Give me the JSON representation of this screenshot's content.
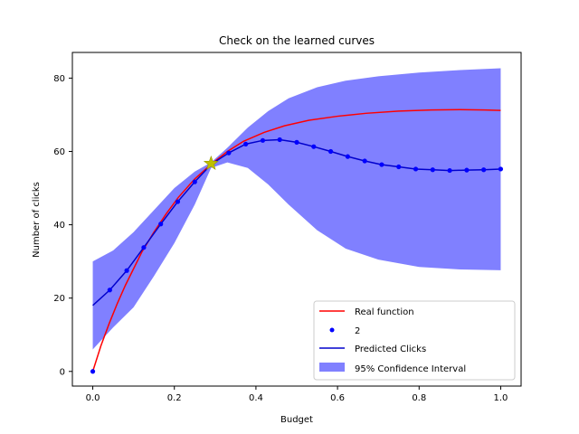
{
  "chart_data": {
    "type": "line",
    "title": "Check on the learned curves",
    "xlabel": "Budget",
    "ylabel": "Number of clicks",
    "xlim": [
      -0.05,
      1.05
    ],
    "ylim": [
      -4,
      87
    ],
    "xticks": [
      0.0,
      0.2,
      0.4,
      0.6,
      0.8,
      1.0
    ],
    "xtick_labels": [
      "0.0",
      "0.2",
      "0.4",
      "0.6",
      "0.8",
      "1.0"
    ],
    "yticks": [
      0,
      20,
      40,
      60,
      80
    ],
    "ytick_labels": [
      "0",
      "20",
      "40",
      "60",
      "80"
    ],
    "grid": false,
    "legend_position": "lower-right",
    "series": [
      {
        "name": "Real function",
        "kind": "line",
        "color": "#ff0000",
        "x": [
          0.0,
          0.02,
          0.04,
          0.06,
          0.08,
          0.1,
          0.12,
          0.15,
          0.18,
          0.21,
          0.25,
          0.29,
          0.33,
          0.37,
          0.42,
          0.47,
          0.53,
          0.6,
          0.67,
          0.75,
          0.83,
          0.9,
          0.96,
          1.0
        ],
        "y": [
          0.0,
          7.0,
          13.0,
          18.5,
          23.5,
          28.0,
          32.5,
          38.0,
          43.0,
          47.5,
          52.5,
          56.5,
          60.0,
          62.8,
          65.2,
          67.0,
          68.5,
          69.6,
          70.4,
          71.0,
          71.3,
          71.4,
          71.3,
          71.2
        ]
      },
      {
        "name": "2",
        "kind": "points",
        "color": "#0000ff",
        "x": [
          0.0,
          0.0417,
          0.0833,
          0.125,
          0.1667,
          0.2083,
          0.25,
          0.2917,
          0.3333,
          0.375,
          0.4167,
          0.4583,
          0.5,
          0.5417,
          0.5833,
          0.625,
          0.6667,
          0.7083,
          0.75,
          0.7917,
          0.8333,
          0.875,
          0.9167,
          0.9583,
          1.0
        ],
        "y": [
          0.0,
          22.2,
          27.5,
          33.8,
          40.2,
          46.3,
          51.7,
          56.6,
          59.6,
          62.0,
          63.0,
          63.2,
          62.5,
          61.3,
          60.0,
          58.6,
          57.4,
          56.4,
          55.8,
          55.2,
          55.0,
          54.8,
          54.9,
          55.0,
          55.2
        ]
      },
      {
        "name": "Predicted Clicks",
        "kind": "line",
        "color": "#0000cc",
        "x": [
          0.0,
          0.0417,
          0.0833,
          0.125,
          0.1667,
          0.2083,
          0.25,
          0.2917,
          0.3333,
          0.375,
          0.4167,
          0.4583,
          0.5,
          0.5417,
          0.5833,
          0.625,
          0.6667,
          0.7083,
          0.75,
          0.7917,
          0.8333,
          0.875,
          0.9167,
          0.9583,
          1.0
        ],
        "y": [
          18.0,
          22.2,
          27.5,
          33.8,
          40.2,
          46.3,
          51.7,
          56.6,
          59.6,
          62.0,
          63.0,
          63.2,
          62.5,
          61.3,
          60.0,
          58.6,
          57.4,
          56.4,
          55.8,
          55.2,
          55.0,
          54.8,
          54.9,
          55.0,
          55.2
        ]
      },
      {
        "name": "95% Confidence Interval",
        "kind": "band",
        "color": "#8080ff",
        "x": [
          0.0,
          0.05,
          0.1,
          0.15,
          0.2,
          0.25,
          0.29,
          0.33,
          0.38,
          0.43,
          0.48,
          0.55,
          0.62,
          0.7,
          0.8,
          0.9,
          1.0
        ],
        "upper": [
          30.0,
          33.0,
          38.0,
          44.0,
          50.0,
          54.5,
          57.0,
          61.0,
          66.5,
          71.0,
          74.5,
          77.5,
          79.3,
          80.5,
          81.5,
          82.2,
          82.7
        ],
        "lower": [
          6.0,
          12.0,
          17.5,
          26.0,
          35.0,
          45.5,
          55.5,
          57.0,
          55.5,
          51.0,
          45.5,
          38.5,
          33.5,
          30.5,
          28.5,
          27.8,
          27.6
        ]
      }
    ],
    "marker": {
      "shape": "star",
      "color": "#bfbf00",
      "x": 0.29,
      "y": 56.7
    },
    "legend": {
      "entries": [
        {
          "label": "Real function",
          "symbol": "line",
          "color": "#ff0000"
        },
        {
          "label": "2",
          "symbol": "dot",
          "color": "#0000ff"
        },
        {
          "label": "Predicted Clicks",
          "symbol": "line",
          "color": "#0000cc"
        },
        {
          "label": "95% Confidence Interval",
          "symbol": "patch",
          "color": "#8080ff"
        }
      ]
    }
  }
}
